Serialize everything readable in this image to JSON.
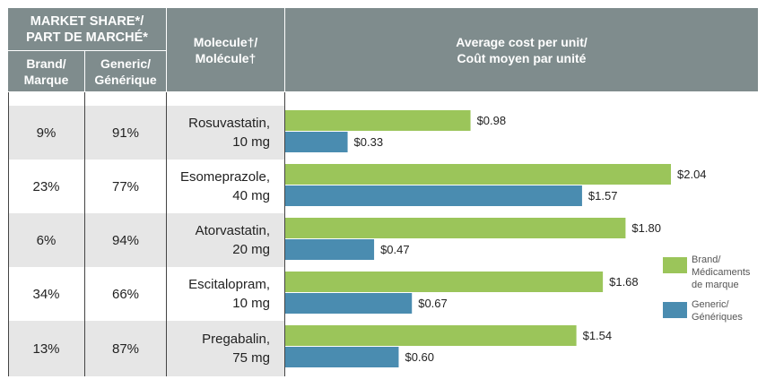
{
  "headers": {
    "market_share": "MARKET SHARE*/\nPART DE MARCHÉ*",
    "brand": "Brand/\nMarque",
    "generic": "Generic/\nGénérique",
    "molecule": "Molecule†/\nMolécule†",
    "avg_cost": "Average cost per unit/\nCoût moyen par unité"
  },
  "rows": [
    {
      "brand_share": "9%",
      "generic_share": "91%",
      "molecule": "Rosuvastatin,\n10 mg"
    },
    {
      "brand_share": "23%",
      "generic_share": "77%",
      "molecule": "Esomeprazole,\n40 mg"
    },
    {
      "brand_share": "6%",
      "generic_share": "94%",
      "molecule": "Atorvastatin,\n20 mg"
    },
    {
      "brand_share": "34%",
      "generic_share": "66%",
      "molecule": "Escitalopram,\n10 mg"
    },
    {
      "brand_share": "13%",
      "generic_share": "87%",
      "molecule": "Pregabalin,\n75 mg"
    }
  ],
  "legend": {
    "brand": "Brand/\nMédicaments\nde marque",
    "generic": "Generic/\nGénériques"
  },
  "colors": {
    "brand": "#9bc55a",
    "generic": "#4a8cb0",
    "header": "#7f8c8d",
    "row_shade": "#e6e6e6"
  },
  "chart_data": {
    "type": "bar",
    "orientation": "horizontal",
    "categories": [
      "Rosuvastatin, 10 mg",
      "Esomeprazole, 40 mg",
      "Atorvastatin, 20 mg",
      "Escitalopram, 10 mg",
      "Pregabalin, 75 mg"
    ],
    "series": [
      {
        "name": "Brand/ Médicaments de marque",
        "values": [
          0.98,
          2.04,
          1.8,
          1.68,
          1.54
        ],
        "labels": [
          "$0.98",
          "$2.04",
          "$1.80",
          "$1.68",
          "$1.54"
        ]
      },
      {
        "name": "Generic/ Génériques",
        "values": [
          0.33,
          1.57,
          0.47,
          0.67,
          0.6
        ],
        "labels": [
          "$0.33",
          "$1.57",
          "$0.47",
          "$0.67",
          "$0.60"
        ]
      }
    ],
    "title": "Average cost per unit/ Coût moyen par unité",
    "xlim": [
      0,
      2.04
    ]
  }
}
